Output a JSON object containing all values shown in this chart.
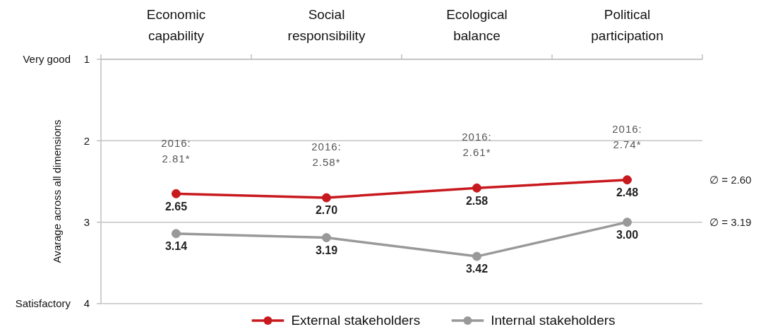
{
  "chart_data": {
    "type": "line",
    "ylabel": "Avarage across all dimensions",
    "categories": [
      "Economic capability",
      "Social responsibility",
      "Ecological balance",
      "Political participation"
    ],
    "series": [
      {
        "name": "External stakeholders",
        "color": "#c8191e",
        "values": [
          2.65,
          2.7,
          2.58,
          2.48
        ],
        "value_labels": [
          "2.65",
          "2.70",
          "2.58",
          "2.48"
        ]
      },
      {
        "name": "Internal stakeholders",
        "color": "#999999",
        "values": [
          3.14,
          3.19,
          3.42,
          3.0
        ],
        "value_labels": [
          "3.14",
          "3.19",
          "3.42",
          "3.00"
        ]
      }
    ],
    "ylim": [
      4,
      1
    ],
    "yticks": [
      1,
      2,
      3,
      4
    ],
    "grid": "y",
    "legend": "bottom",
    "marker": "circle",
    "line_style": "solid",
    "annotations": [
      "Very good",
      "Satisfactory",
      "2016:\n2.81*",
      "2016:\n2.58*",
      "2016:\n2.61*",
      "2016:\n2.74*",
      "∅ = 2.60",
      "∅ = 3.19"
    ]
  }
}
